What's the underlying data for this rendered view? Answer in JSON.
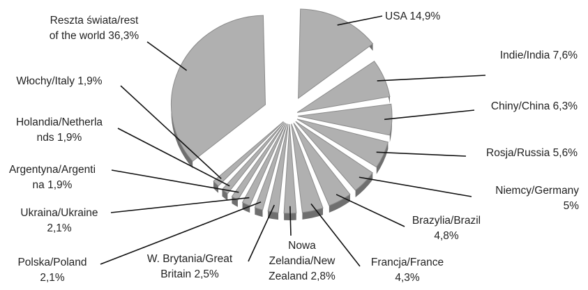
{
  "chart_data": {
    "type": "pie",
    "style": "3d-exploded",
    "colors": {
      "slice": "#b0b0b0",
      "slice_edge": "#8a8a8a",
      "slice_side": "#6f6f6f",
      "leader": "#111111",
      "text": "#222222"
    },
    "slices": [
      {
        "label": "USA 14,9%",
        "value": 14.9
      },
      {
        "label": "Indie/India 7,6%",
        "value": 7.6
      },
      {
        "label": "Chiny/China 6,3%",
        "value": 6.3
      },
      {
        "label": "Rosja/Russia 5,6%",
        "value": 5.6
      },
      {
        "label": "Niemcy/Germany 5%",
        "value": 5.0
      },
      {
        "label": "Brazylia/Brazil 4,8%",
        "value": 4.8
      },
      {
        "label": "Francja/France 4,3%",
        "value": 4.3
      },
      {
        "label": "Nowa Zelandia/New Zealand 2,8%",
        "value": 2.8
      },
      {
        "label": "W. Brytania/Great Britain 2,5%",
        "value": 2.5
      },
      {
        "label": "Polska/Poland 2,1%",
        "value": 2.1
      },
      {
        "label": "Ukraina/Ukraine 2,1%",
        "value": 2.1
      },
      {
        "label": "Argentyna/Argentina 1,9%",
        "value": 1.9
      },
      {
        "label": "Holandia/Netherlands 1,9%",
        "value": 1.9
      },
      {
        "label": "Włochy/Italy 1,9%",
        "value": 1.9
      },
      {
        "label": "Reszta świata/rest of the world 36,3%",
        "value": 36.3
      }
    ],
    "label_lines": [
      [
        "USA 14,9%"
      ],
      [
        "Indie/India 7,6%"
      ],
      [
        "Chiny/China 6,3%"
      ],
      [
        "Rosja/Russia 5,6%"
      ],
      [
        "Niemcy/Germany",
        "5%"
      ],
      [
        "Brazylia/Brazil",
        "4,8%"
      ],
      [
        "Francja/France",
        "4,3%"
      ],
      [
        "Nowa",
        "Zelandia/New",
        "Zealand 2,8%"
      ],
      [
        "W. Brytania/Great",
        "Britain  2,5%"
      ],
      [
        "Polska/Poland",
        "2,1%"
      ],
      [
        "Ukraina/Ukraine",
        "2,1%"
      ],
      [
        "Argentyna/Argenti",
        "na 1,9%"
      ],
      [
        "Holandia/Netherla",
        "nds 1,9%"
      ],
      [
        "Włochy/Italy 1,9%"
      ],
      [
        "Reszta świata/rest",
        "of the world 36,3%"
      ]
    ]
  }
}
